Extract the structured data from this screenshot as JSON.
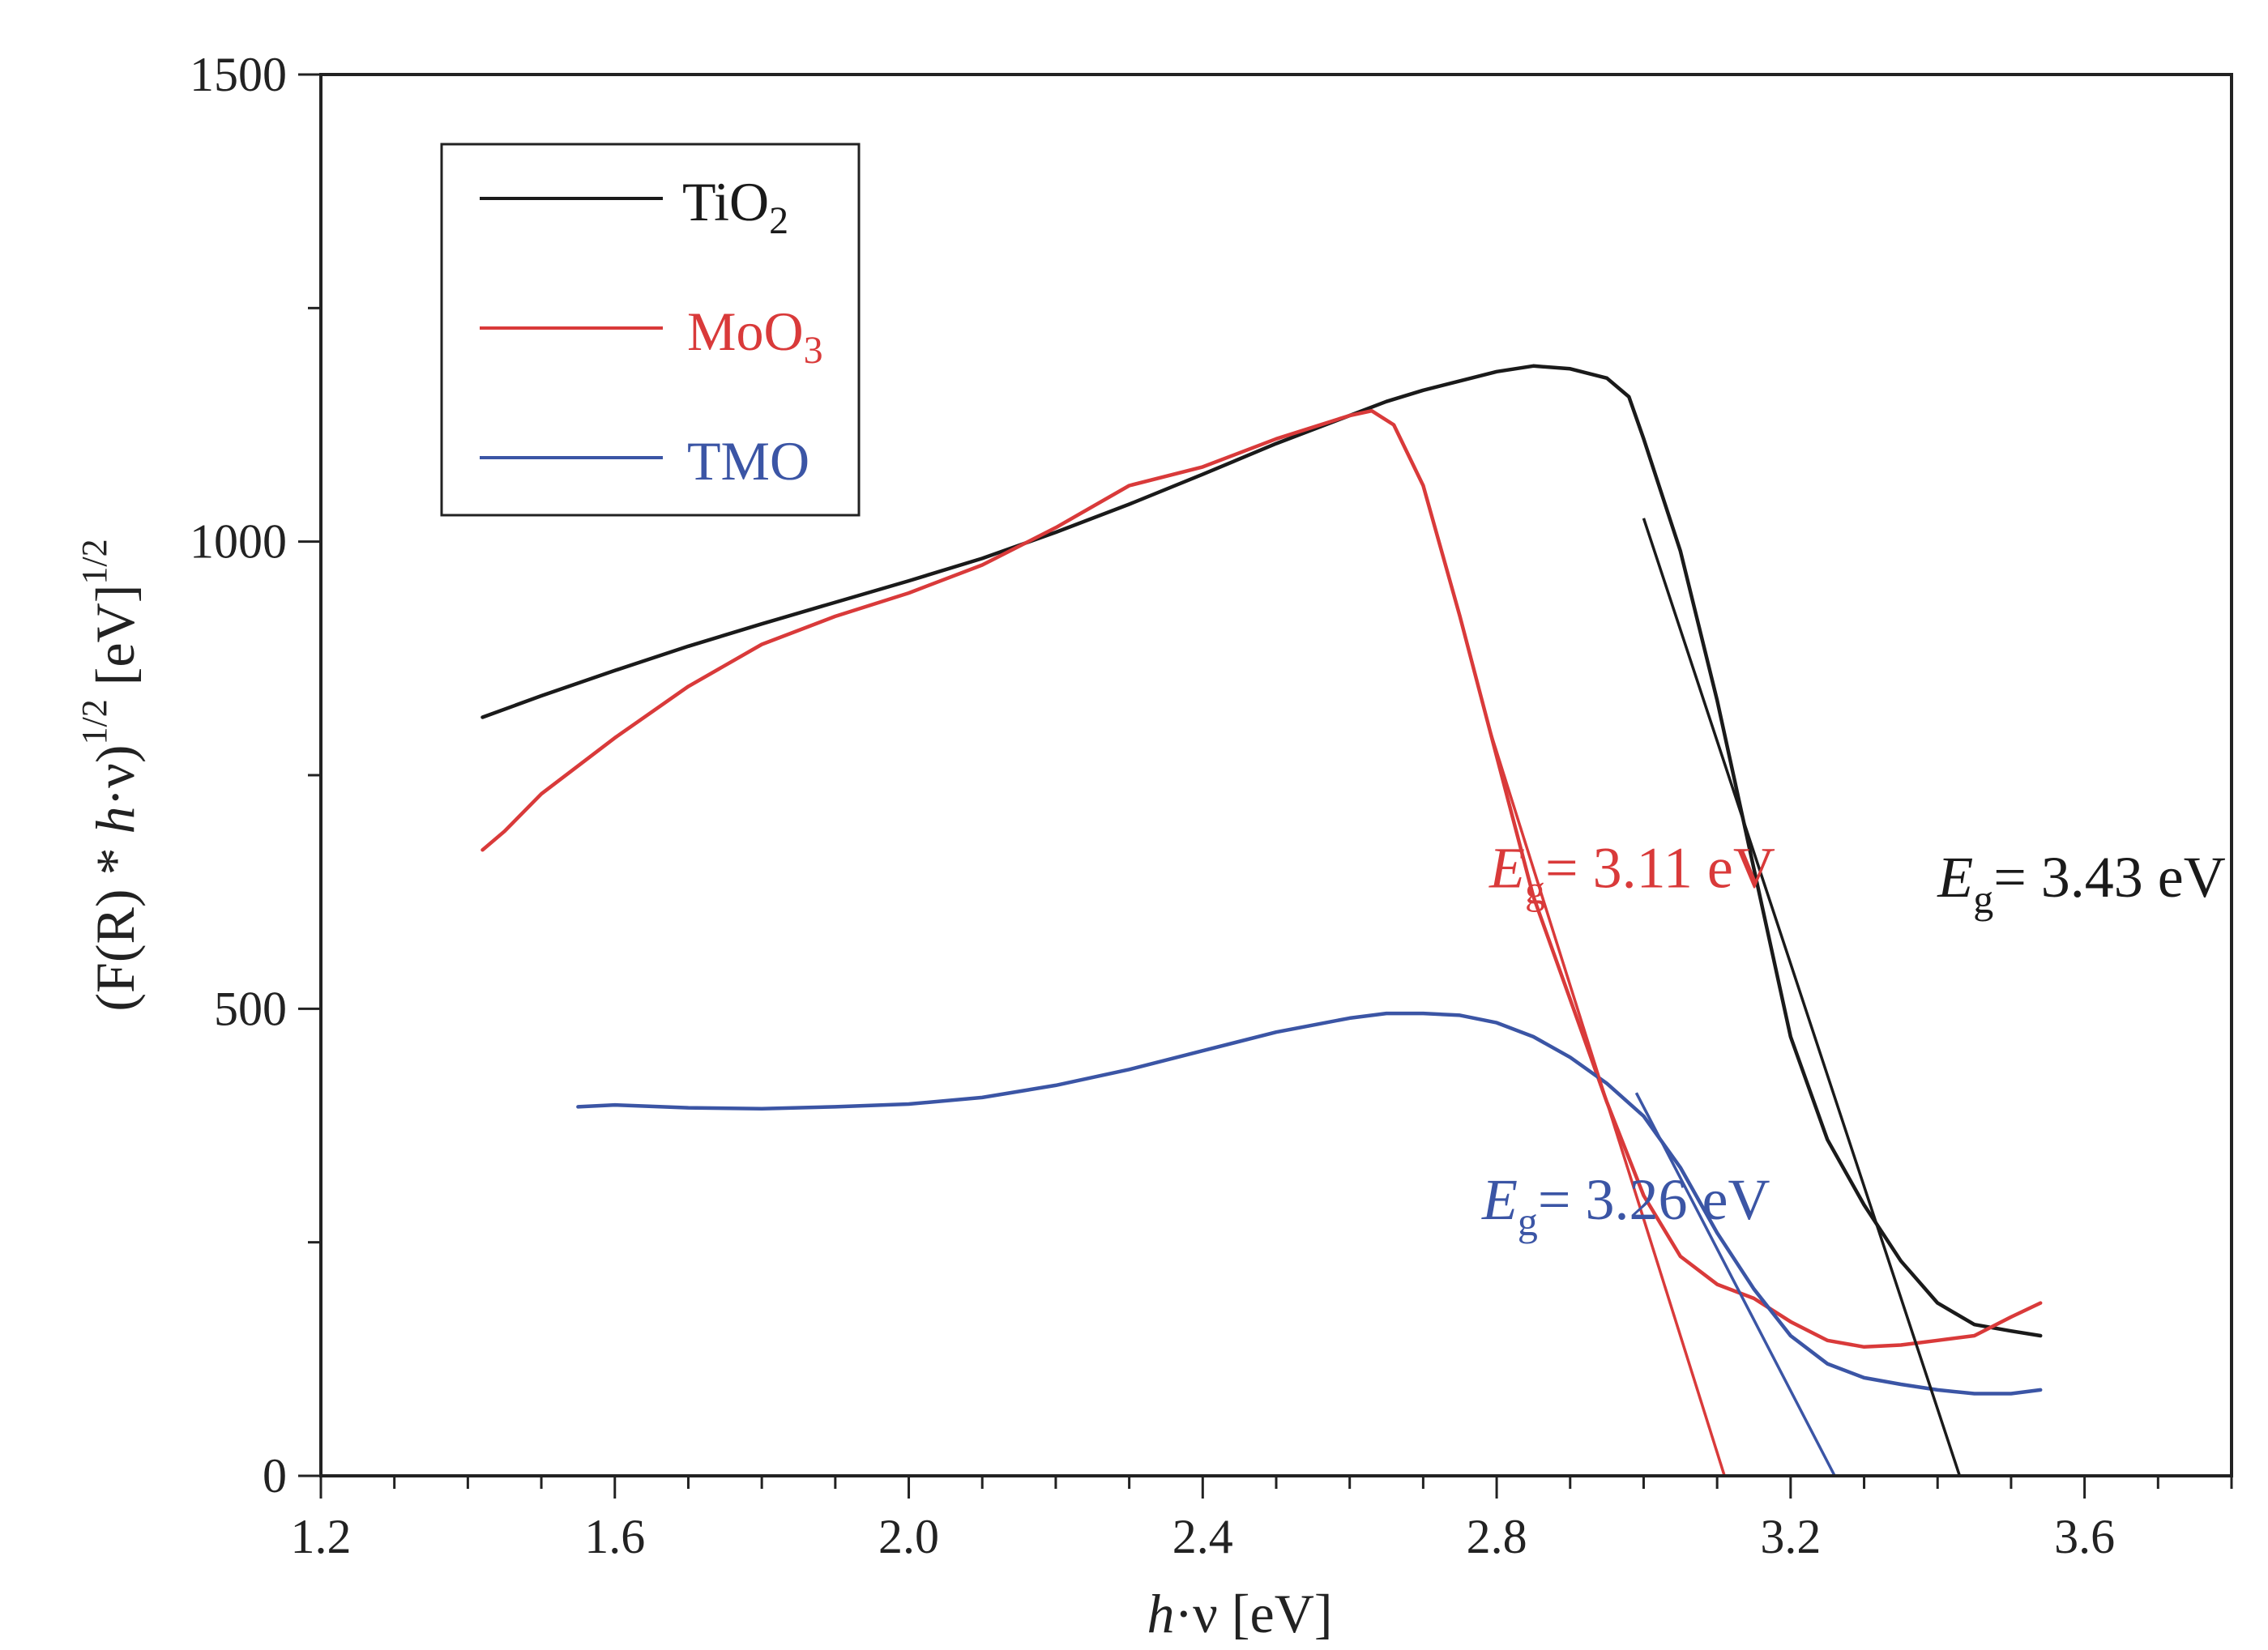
{
  "chart_data": {
    "type": "line",
    "title": "",
    "xlabel": {
      "italic": "h",
      "rest": "·ν [eV]"
    },
    "ylabel": {
      "open": "(F(R) * ",
      "italic": "h",
      "mid": "·ν)",
      "sup1": "1/2",
      "unit": " [eV]",
      "sup2": "1/2"
    },
    "xlim": [
      1.2,
      3.8
    ],
    "ylim": [
      0,
      1500
    ],
    "xticks": [
      1.2,
      1.6,
      2.0,
      2.4,
      2.8,
      3.2,
      3.6
    ],
    "xtick_labels": [
      "1.2",
      "1.6",
      "2.0",
      "2.4",
      "2.8",
      "3.2",
      "3.6"
    ],
    "yticks": [
      0,
      500,
      1000,
      1500
    ],
    "ytick_labels": [
      "0",
      "500",
      "1000",
      "1500"
    ],
    "grid": false,
    "legend_position": "top-left",
    "series": [
      {
        "name": "TiO2",
        "label_main": "TiO",
        "label_sub": "2",
        "color": "#1a1a1a",
        "x": [
          1.42,
          1.5,
          1.6,
          1.7,
          1.8,
          1.9,
          2.0,
          2.1,
          2.2,
          2.3,
          2.4,
          2.5,
          2.6,
          2.65,
          2.7,
          2.75,
          2.8,
          2.85,
          2.9,
          2.95,
          2.98,
          3.0,
          3.05,
          3.1,
          3.15,
          3.2,
          3.25,
          3.3,
          3.35,
          3.4,
          3.45,
          3.5,
          3.54
        ],
        "y": [
          812,
          835,
          862,
          888,
          912,
          935,
          958,
          982,
          1010,
          1040,
          1072,
          1105,
          1135,
          1150,
          1162,
          1172,
          1182,
          1188,
          1185,
          1175,
          1155,
          1110,
          990,
          830,
          650,
          470,
          360,
          290,
          230,
          185,
          162,
          155,
          150
        ]
      },
      {
        "name": "MoO3",
        "label_main": "MoO",
        "label_sub": "3",
        "color": "#d93a3a",
        "x": [
          1.42,
          1.45,
          1.5,
          1.6,
          1.7,
          1.8,
          1.9,
          2.0,
          2.1,
          2.2,
          2.3,
          2.4,
          2.5,
          2.6,
          2.63,
          2.66,
          2.7,
          2.75,
          2.8,
          2.85,
          2.9,
          2.95,
          3.0,
          3.05,
          3.1,
          3.15,
          3.2,
          3.25,
          3.3,
          3.35,
          3.4,
          3.45,
          3.5,
          3.54
        ],
        "y": [
          670,
          690,
          730,
          790,
          845,
          890,
          920,
          945,
          975,
          1015,
          1060,
          1080,
          1110,
          1135,
          1140,
          1125,
          1060,
          920,
          770,
          620,
          510,
          400,
          300,
          235,
          205,
          190,
          165,
          145,
          138,
          140,
          145,
          150,
          170,
          185
        ]
      },
      {
        "name": "TMO",
        "label_main": "TMO",
        "label_sub": "",
        "color": "#3b55a5",
        "x": [
          1.55,
          1.6,
          1.7,
          1.8,
          1.9,
          2.0,
          2.1,
          2.2,
          2.3,
          2.4,
          2.5,
          2.6,
          2.65,
          2.7,
          2.75,
          2.8,
          2.85,
          2.9,
          2.95,
          3.0,
          3.05,
          3.1,
          3.15,
          3.2,
          3.25,
          3.3,
          3.35,
          3.4,
          3.45,
          3.5,
          3.54
        ],
        "y": [
          395,
          397,
          394,
          393,
          395,
          398,
          405,
          418,
          435,
          455,
          475,
          490,
          495,
          495,
          493,
          485,
          470,
          448,
          420,
          385,
          330,
          260,
          200,
          150,
          120,
          105,
          98,
          92,
          88,
          88,
          92
        ]
      }
    ],
    "tangent_lines": [
      {
        "series": "TiO2",
        "color": "#1a1a1a",
        "x": [
          3.0,
          3.43
        ],
        "y": [
          1025,
          0
        ]
      },
      {
        "series": "MoO3",
        "color": "#d93a3a",
        "x": [
          2.79,
          3.11
        ],
        "y": [
          800,
          0
        ]
      },
      {
        "series": "TMO",
        "color": "#3b55a5",
        "x": [
          2.99,
          3.26
        ],
        "y": [
          410,
          0
        ]
      }
    ],
    "annotations": [
      {
        "series": "MoO3",
        "italic": "E",
        "sub": "g",
        "value": "= 3.11 eV",
        "color": "#d93a3a",
        "at": [
          2.79,
          630
        ]
      },
      {
        "series": "TiO2",
        "italic": "E",
        "sub": "g",
        "value": "= 3.43 eV",
        "color": "#1a1a1a",
        "at": [
          3.4,
          620
        ]
      },
      {
        "series": "TMO",
        "italic": "E",
        "sub": "g",
        "value": "= 3.26 eV",
        "color": "#3b55a5",
        "at": [
          2.78,
          275
        ]
      }
    ]
  }
}
